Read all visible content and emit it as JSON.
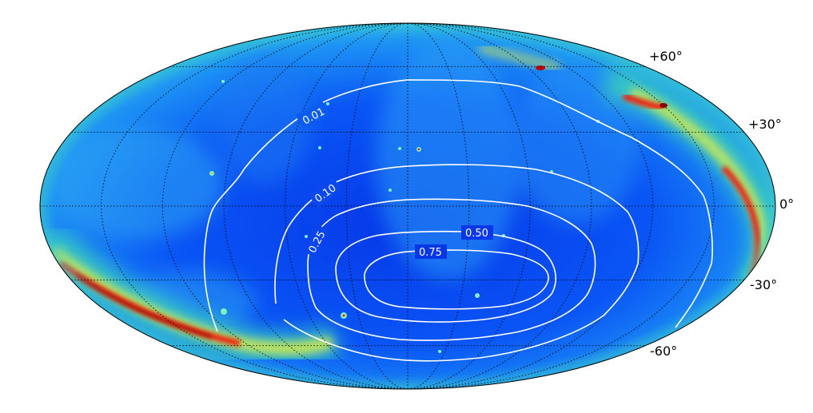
{
  "projection": "mollweide",
  "colormap": "jet",
  "latitude_labels": [
    "+60°",
    "+30°",
    "0°",
    "-30°",
    "-60°"
  ],
  "contour_labels": [
    "0.01",
    "0.10",
    "0.25",
    "0.50",
    "0.75"
  ],
  "colors": {
    "background": "#0a3cf0",
    "contour": "#ffffff",
    "grid": "#000000"
  }
}
